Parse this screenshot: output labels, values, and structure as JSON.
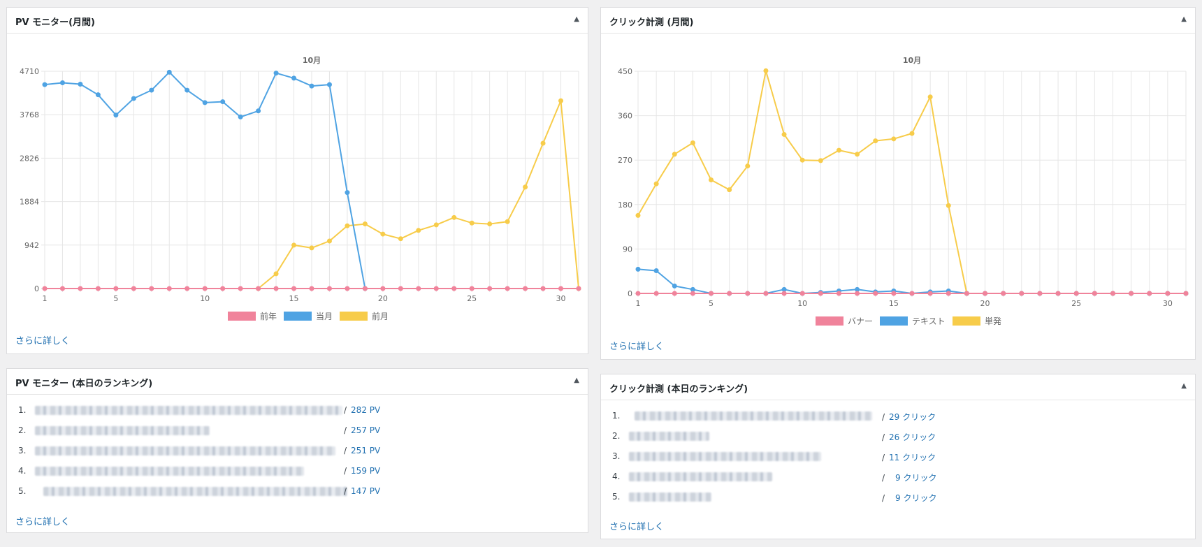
{
  "more_label": "さらに詳しく",
  "colors": {
    "red": "#f0839b",
    "blue": "#4fa3e3",
    "yellow": "#f7cc4a"
  },
  "pv_monthly": {
    "title": "PV モニター(月間)",
    "chart_data": {
      "type": "line",
      "title": "10月",
      "x": [
        1,
        2,
        3,
        4,
        5,
        6,
        7,
        8,
        9,
        10,
        11,
        12,
        13,
        14,
        15,
        16,
        17,
        18,
        19,
        20,
        21,
        22,
        23,
        24,
        25,
        26,
        27,
        28,
        29,
        30,
        31
      ],
      "x_ticks": [
        1,
        5,
        10,
        15,
        20,
        25,
        30
      ],
      "y_ticks": [
        0,
        942,
        1884,
        2826,
        3768,
        4710
      ],
      "ylim": [
        0,
        4710
      ],
      "grid": true,
      "legend": "bottom",
      "series": [
        {
          "name": "前年",
          "color": "#f0839b",
          "values": [
            0,
            0,
            0,
            0,
            0,
            0,
            0,
            0,
            0,
            0,
            0,
            0,
            0,
            0,
            0,
            0,
            0,
            0,
            0,
            0,
            0,
            0,
            0,
            0,
            0,
            0,
            0,
            0,
            0,
            0,
            0
          ]
        },
        {
          "name": "当月",
          "color": "#4fa3e3",
          "values": [
            4420,
            4460,
            4430,
            4200,
            3760,
            4120,
            4300,
            4690,
            4300,
            4030,
            4050,
            3720,
            3850,
            4670,
            4560,
            4390,
            4420,
            2080,
            0,
            null,
            null,
            null,
            null,
            null,
            null,
            null,
            null,
            null,
            null,
            null,
            null
          ]
        },
        {
          "name": "前月",
          "color": "#f7cc4a",
          "values": [
            null,
            null,
            null,
            null,
            null,
            null,
            null,
            null,
            null,
            null,
            null,
            null,
            0,
            320,
            940,
            880,
            1030,
            1360,
            1400,
            1180,
            1080,
            1260,
            1380,
            1540,
            1420,
            1400,
            1450,
            2200,
            3150,
            4070,
            0
          ]
        }
      ]
    }
  },
  "click_monthly": {
    "title": "クリック計測 (月間)",
    "chart_data": {
      "type": "line",
      "title": "10月",
      "x": [
        1,
        2,
        3,
        4,
        5,
        6,
        7,
        8,
        9,
        10,
        11,
        12,
        13,
        14,
        15,
        16,
        17,
        18,
        19,
        20,
        21,
        22,
        23,
        24,
        25,
        26,
        27,
        28,
        29,
        30,
        31
      ],
      "x_ticks": [
        1,
        5,
        10,
        15,
        20,
        25,
        30
      ],
      "y_ticks": [
        0,
        90,
        180,
        270,
        360,
        450
      ],
      "ylim": [
        0,
        450
      ],
      "grid": true,
      "legend": "bottom",
      "series": [
        {
          "name": "バナー",
          "color": "#f0839b",
          "values": [
            0,
            0,
            0,
            0,
            0,
            0,
            0,
            0,
            0,
            0,
            0,
            0,
            0,
            0,
            0,
            0,
            0,
            0,
            0,
            0,
            0,
            0,
            0,
            0,
            0,
            0,
            0,
            0,
            0,
            0,
            0
          ]
        },
        {
          "name": "テキスト",
          "color": "#4fa3e3",
          "values": [
            49,
            46,
            15,
            8,
            0,
            0,
            0,
            0,
            8,
            0,
            2,
            5,
            8,
            3,
            5,
            0,
            3,
            5,
            0,
            0,
            0,
            0,
            0,
            0,
            0,
            0,
            0,
            0,
            0,
            0,
            0
          ]
        },
        {
          "name": "単発",
          "color": "#f7cc4a",
          "values": [
            158,
            222,
            282,
            305,
            230,
            210,
            258,
            451,
            322,
            270,
            269,
            290,
            282,
            309,
            313,
            324,
            398,
            178,
            0,
            0,
            0,
            0,
            0,
            0,
            0,
            0,
            0,
            0,
            0,
            0,
            0
          ]
        }
      ]
    }
  },
  "pv_ranking": {
    "title": "PV モニター (本日のランキング)",
    "items": [
      {
        "rank": "1.",
        "value": "282 PV"
      },
      {
        "rank": "2.",
        "value": "257 PV"
      },
      {
        "rank": "3.",
        "value": "251 PV"
      },
      {
        "rank": "4.",
        "value": "159 PV"
      },
      {
        "rank": "5.",
        "value": "147 PV"
      }
    ]
  },
  "click_ranking": {
    "title": "クリック計測 (本日のランキング)",
    "items": [
      {
        "rank": "1.",
        "value": "29 クリック"
      },
      {
        "rank": "2.",
        "value": "26 クリック"
      },
      {
        "rank": "3.",
        "value": "11 クリック"
      },
      {
        "rank": "4.",
        "value": "9 クリック"
      },
      {
        "rank": "5.",
        "value": "9 クリック"
      }
    ]
  }
}
